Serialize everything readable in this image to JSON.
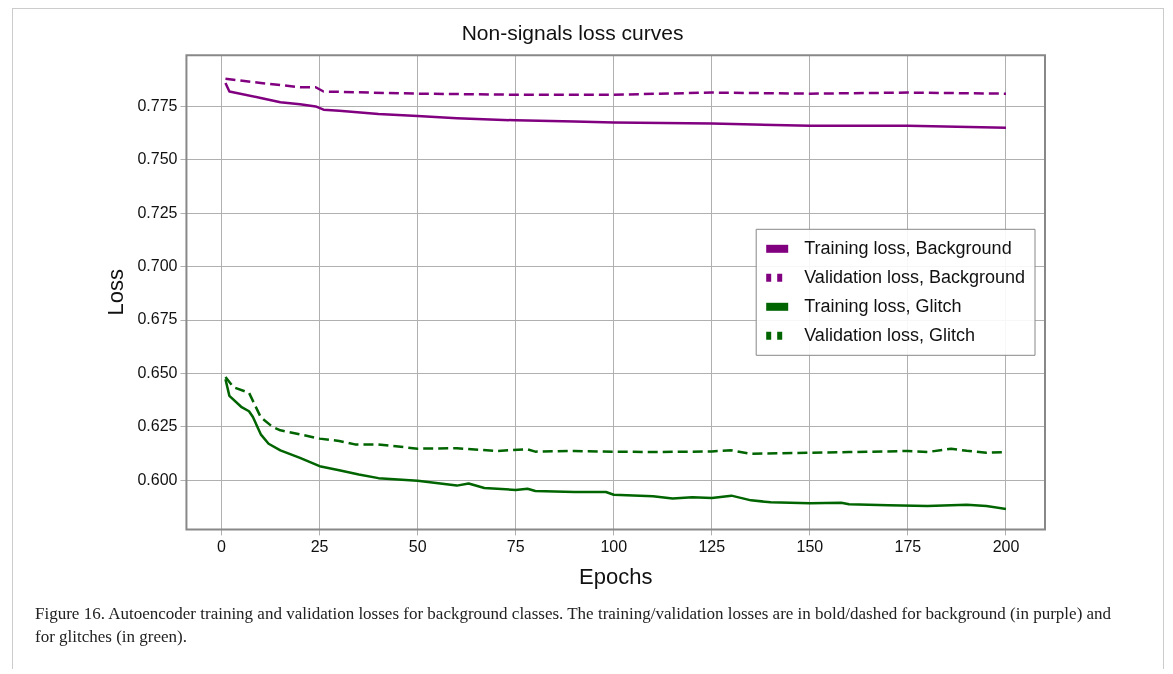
{
  "chart_data": {
    "type": "line",
    "title": "Non-signals loss curves",
    "xlabel": "Epochs",
    "ylabel": "Loss",
    "xlim": [
      -8.95,
      209.95
    ],
    "ylim": [
      0.577,
      0.799
    ],
    "xticks": [
      0,
      25,
      50,
      75,
      100,
      125,
      150,
      175,
      200
    ],
    "yticks": [
      {
        "value": 0.6,
        "label": "0.600"
      },
      {
        "value": 0.625,
        "label": "0.625"
      },
      {
        "value": 0.65,
        "label": "0.650"
      },
      {
        "value": 0.675,
        "label": "0.675"
      },
      {
        "value": 0.7,
        "label": "0.700"
      },
      {
        "value": 0.725,
        "label": "0.725"
      },
      {
        "value": 0.75,
        "label": "0.750"
      },
      {
        "value": 0.775,
        "label": "0.775"
      }
    ],
    "grid": true,
    "legend": "right",
    "marker": "none",
    "series": [
      {
        "name": "Training loss, Background",
        "color": "#800080",
        "line_style": "solid",
        "x": [
          1,
          2,
          10,
          15,
          20,
          24,
          26,
          30,
          40,
          50,
          60,
          75,
          90,
          100,
          125,
          150,
          175,
          200
        ],
        "values": [
          0.786,
          0.782,
          0.779,
          0.777,
          0.776,
          0.775,
          0.7735,
          0.773,
          0.7715,
          0.7705,
          0.7695,
          0.7685,
          0.768,
          0.7675,
          0.767,
          0.766,
          0.766,
          0.765
        ]
      },
      {
        "name": "Validation loss, Background",
        "color": "#800080",
        "line_style": "dashed",
        "x": [
          1,
          10,
          20,
          24,
          26,
          50,
          75,
          100,
          125,
          150,
          175,
          200
        ],
        "values": [
          0.788,
          0.786,
          0.784,
          0.784,
          0.782,
          0.781,
          0.7805,
          0.7805,
          0.7815,
          0.781,
          0.7815,
          0.781
        ]
      },
      {
        "name": "Training loss, Glitch",
        "color": "#006400",
        "line_style": "solid",
        "x": [
          1,
          2,
          5,
          7,
          8,
          10,
          12,
          15,
          20,
          25,
          30,
          35,
          40,
          50,
          60,
          63,
          67,
          75,
          78,
          80,
          90,
          98,
          100,
          110,
          115,
          120,
          125,
          130,
          135,
          140,
          150,
          158,
          160,
          170,
          180,
          190,
          195,
          200
        ],
        "values": [
          0.6473,
          0.6395,
          0.6344,
          0.6323,
          0.6296,
          0.6215,
          0.6171,
          0.614,
          0.6105,
          0.6066,
          0.6047,
          0.6027,
          0.601,
          0.5998,
          0.5975,
          0.5985,
          0.5964,
          0.5955,
          0.596,
          0.595,
          0.5945,
          0.5945,
          0.5932,
          0.5925,
          0.5915,
          0.592,
          0.5917,
          0.5928,
          0.5906,
          0.5897,
          0.5893,
          0.5895,
          0.5888,
          0.5883,
          0.588,
          0.5885,
          0.588,
          0.5866
        ]
      },
      {
        "name": "Validation loss, Glitch",
        "color": "#006400",
        "line_style": "dashed",
        "x": [
          1,
          3,
          6,
          7,
          10,
          13,
          15,
          20,
          25,
          30,
          34,
          40,
          50,
          60,
          70,
          78,
          80,
          90,
          100,
          110,
          125,
          130,
          135,
          150,
          160,
          175,
          180,
          186,
          190,
          195,
          200
        ],
        "values": [
          0.6484,
          0.6436,
          0.6416,
          0.641,
          0.6295,
          0.625,
          0.6234,
          0.6215,
          0.6195,
          0.6184,
          0.6168,
          0.6168,
          0.6148,
          0.615,
          0.6137,
          0.6145,
          0.6134,
          0.6137,
          0.6134,
          0.6132,
          0.6135,
          0.614,
          0.6124,
          0.6129,
          0.6132,
          0.6137,
          0.6132,
          0.6148,
          0.6138,
          0.6129,
          0.6132
        ]
      }
    ],
    "annotations": [
      "Figure 16. Autoencoder training and validation losses for background classes. The training/validation losses are in bold/dashed for background (in purple) and for glitches (in green)."
    ]
  }
}
